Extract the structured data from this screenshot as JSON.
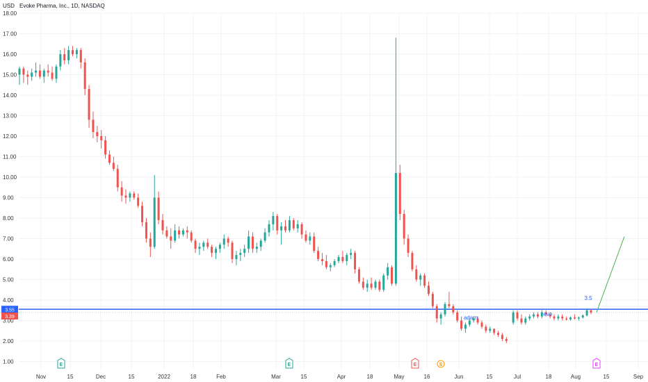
{
  "header": {
    "currency": "USD",
    "title": "Evoke Pharma, Inc., 1D, NASDAQ"
  },
  "colors": {
    "up": "#26a69a",
    "down": "#ef5350",
    "hline": "#2962ff",
    "trend": "#4caf50",
    "grid": "#f2f3f5",
    "earnings": "#26a69a",
    "earnings_past_red": "#ef5350",
    "split": "#ff9800",
    "future_earnings": "#e040fb"
  },
  "chart_data": {
    "type": "candlestick",
    "title": "Evoke Pharma, Inc., 1D, NASDAQ",
    "ylabel": "USD",
    "ylim": [
      0.5,
      18.5
    ],
    "y_ticks": [
      "1.00",
      "2.00",
      "3.00",
      "4.00",
      "5.00",
      "6.00",
      "7.00",
      "8.00",
      "9.00",
      "10.00",
      "11.00",
      "12.00",
      "13.00",
      "14.00",
      "15.00",
      "16.00",
      "17.00",
      "18.00"
    ],
    "x_ticks": [
      "Nov",
      "15",
      "Dec",
      "15",
      "2022",
      "18",
      "Feb",
      "Mar",
      "15",
      "Apr",
      "18",
      "May",
      "16",
      "Jun",
      "15",
      "Jul",
      "18",
      "Aug",
      "15",
      "Sep"
    ],
    "key_levels": [
      {
        "label": "3.55",
        "value": 3.55,
        "style": "horizontal line"
      },
      {
        "label": "3.39",
        "value": 3.39,
        "style": "last price"
      }
    ],
    "annotations": [
      "adam",
      "eve",
      "3.5"
    ],
    "events": [
      "E",
      "E",
      "E",
      "S",
      "E"
    ],
    "candles_ohlc": [
      [
        15.0,
        15.4,
        14.5,
        15.3
      ],
      [
        15.3,
        15.4,
        14.6,
        15.0
      ],
      [
        15.0,
        15.2,
        14.5,
        14.9
      ],
      [
        14.9,
        15.3,
        14.7,
        15.1
      ],
      [
        15.1,
        15.6,
        14.9,
        15.2
      ],
      [
        15.2,
        15.5,
        14.8,
        14.9
      ],
      [
        14.9,
        15.3,
        14.6,
        15.2
      ],
      [
        15.2,
        15.5,
        14.9,
        15.1
      ],
      [
        15.1,
        15.4,
        14.7,
        14.8
      ],
      [
        14.8,
        15.5,
        14.6,
        15.4
      ],
      [
        15.4,
        16.2,
        15.2,
        16.0
      ],
      [
        16.0,
        16.3,
        15.5,
        15.7
      ],
      [
        15.7,
        16.4,
        15.5,
        16.2
      ],
      [
        16.2,
        16.4,
        15.9,
        16.0
      ],
      [
        16.0,
        16.3,
        15.8,
        16.2
      ],
      [
        16.2,
        16.3,
        15.3,
        15.6
      ],
      [
        15.6,
        15.8,
        14.0,
        14.3
      ],
      [
        14.3,
        14.5,
        12.4,
        12.8
      ],
      [
        12.8,
        13.2,
        11.9,
        12.2
      ],
      [
        12.2,
        12.5,
        11.7,
        12.0
      ],
      [
        12.0,
        12.3,
        11.4,
        11.8
      ],
      [
        11.8,
        12.0,
        10.9,
        11.1
      ],
      [
        11.1,
        11.3,
        10.6,
        10.7
      ],
      [
        10.7,
        11.0,
        10.3,
        10.4
      ],
      [
        10.4,
        10.6,
        9.3,
        9.5
      ],
      [
        9.5,
        9.8,
        8.8,
        9.1
      ],
      [
        9.1,
        9.4,
        8.7,
        9.0
      ],
      [
        9.0,
        9.3,
        8.8,
        9.2
      ],
      [
        9.2,
        9.3,
        8.9,
        9.0
      ],
      [
        9.0,
        9.2,
        8.5,
        8.6
      ],
      [
        8.6,
        8.8,
        7.6,
        7.8
      ],
      [
        7.8,
        8.0,
        6.8,
        7.0
      ],
      [
        7.0,
        7.3,
        6.1,
        6.6
      ],
      [
        6.6,
        10.1,
        6.5,
        9.0
      ],
      [
        9.0,
        9.3,
        7.7,
        7.9
      ],
      [
        7.9,
        8.2,
        7.2,
        7.4
      ],
      [
        7.4,
        7.6,
        7.0,
        7.1
      ],
      [
        7.1,
        7.5,
        6.5,
        6.9
      ],
      [
        6.9,
        7.7,
        6.8,
        7.4
      ],
      [
        7.4,
        7.6,
        7.0,
        7.2
      ],
      [
        7.2,
        7.5,
        7.1,
        7.4
      ],
      [
        7.4,
        7.6,
        7.0,
        7.3
      ],
      [
        7.3,
        7.4,
        6.8,
        6.9
      ],
      [
        6.9,
        7.0,
        6.3,
        6.5
      ],
      [
        6.5,
        6.8,
        6.2,
        6.6
      ],
      [
        6.6,
        6.9,
        6.4,
        6.8
      ],
      [
        6.8,
        7.0,
        6.5,
        6.6
      ],
      [
        6.6,
        6.7,
        6.1,
        6.3
      ],
      [
        6.3,
        6.6,
        6.0,
        6.5
      ],
      [
        6.5,
        6.8,
        6.3,
        6.7
      ],
      [
        6.7,
        7.2,
        6.5,
        7.0
      ],
      [
        7.0,
        7.1,
        6.6,
        6.8
      ],
      [
        6.8,
        6.9,
        5.8,
        6.0
      ],
      [
        6.0,
        6.4,
        5.7,
        6.2
      ],
      [
        6.2,
        6.5,
        5.9,
        6.3
      ],
      [
        6.3,
        6.7,
        6.1,
        6.5
      ],
      [
        6.5,
        7.4,
        6.3,
        7.1
      ],
      [
        7.1,
        7.3,
        6.3,
        6.5
      ],
      [
        6.5,
        6.8,
        6.3,
        6.6
      ],
      [
        6.6,
        7.0,
        6.4,
        6.9
      ],
      [
        6.9,
        7.5,
        6.8,
        7.3
      ],
      [
        7.3,
        7.9,
        7.1,
        7.7
      ],
      [
        7.7,
        8.3,
        7.4,
        8.1
      ],
      [
        8.1,
        8.2,
        7.2,
        7.4
      ],
      [
        7.4,
        7.8,
        6.7,
        7.6
      ],
      [
        7.6,
        7.9,
        7.3,
        7.4
      ],
      [
        7.4,
        8.1,
        7.3,
        7.9
      ],
      [
        7.9,
        8.0,
        7.4,
        7.5
      ],
      [
        7.5,
        7.9,
        7.3,
        7.7
      ],
      [
        7.7,
        7.8,
        7.0,
        7.2
      ],
      [
        7.2,
        7.4,
        6.8,
        6.9
      ],
      [
        6.9,
        7.3,
        6.7,
        7.1
      ],
      [
        7.1,
        7.3,
        6.3,
        6.4
      ],
      [
        6.4,
        6.6,
        5.9,
        6.0
      ],
      [
        6.0,
        6.3,
        5.7,
        5.9
      ],
      [
        5.9,
        6.2,
        5.5,
        5.6
      ],
      [
        5.6,
        5.8,
        5.4,
        5.7
      ],
      [
        5.7,
        6.0,
        5.6,
        5.9
      ],
      [
        5.9,
        6.2,
        5.8,
        6.1
      ],
      [
        6.1,
        6.4,
        5.8,
        5.9
      ],
      [
        5.9,
        6.3,
        5.7,
        6.2
      ],
      [
        6.2,
        6.5,
        6.0,
        6.3
      ],
      [
        6.3,
        6.4,
        5.3,
        5.5
      ],
      [
        5.5,
        5.6,
        4.8,
        4.9
      ],
      [
        4.9,
        5.1,
        4.5,
        4.6
      ],
      [
        4.6,
        5.0,
        4.4,
        4.8
      ],
      [
        4.8,
        5.1,
        4.5,
        4.6
      ],
      [
        4.6,
        5.0,
        4.5,
        4.9
      ],
      [
        4.9,
        5.0,
        4.4,
        4.5
      ],
      [
        4.5,
        5.3,
        4.4,
        5.2
      ],
      [
        5.2,
        5.8,
        5.0,
        5.6
      ],
      [
        5.6,
        5.7,
        4.7,
        4.8
      ],
      [
        4.8,
        16.8,
        4.7,
        10.2
      ],
      [
        10.2,
        10.6,
        7.9,
        8.2
      ],
      [
        8.2,
        8.4,
        6.7,
        7.0
      ],
      [
        7.0,
        7.2,
        6.1,
        6.3
      ],
      [
        6.3,
        6.4,
        5.4,
        5.5
      ],
      [
        5.5,
        5.7,
        4.9,
        5.0
      ],
      [
        5.0,
        5.3,
        4.7,
        5.2
      ],
      [
        5.2,
        5.3,
        4.6,
        4.7
      ],
      [
        4.7,
        4.9,
        4.2,
        4.3
      ],
      [
        4.3,
        4.4,
        3.6,
        3.7
      ],
      [
        3.7,
        3.8,
        2.9,
        3.1
      ],
      [
        3.1,
        3.4,
        2.8,
        3.3
      ],
      [
        3.3,
        3.9,
        3.2,
        3.8
      ],
      [
        3.8,
        4.4,
        3.6,
        3.7
      ],
      [
        3.7,
        3.8,
        3.3,
        3.4
      ],
      [
        3.4,
        3.5,
        2.9,
        3.0
      ],
      [
        3.0,
        3.2,
        2.5,
        2.6
      ],
      [
        2.6,
        2.9,
        2.4,
        2.8
      ],
      [
        2.8,
        3.1,
        2.7,
        3.0
      ],
      [
        3.0,
        3.2,
        2.9,
        3.1
      ],
      [
        3.1,
        3.2,
        2.8,
        2.9
      ],
      [
        2.9,
        3.0,
        2.6,
        2.7
      ],
      [
        2.7,
        2.8,
        2.4,
        2.5
      ],
      [
        2.5,
        2.7,
        2.4,
        2.6
      ],
      [
        2.6,
        2.6,
        2.3,
        2.4
      ],
      [
        2.4,
        2.5,
        2.2,
        2.3
      ],
      [
        2.3,
        2.4,
        2.0,
        2.1
      ],
      [
        2.1,
        2.2,
        1.9,
        2.0
      ],
      [
        2.9,
        3.5,
        2.8,
        3.4
      ],
      [
        3.4,
        3.5,
        3.0,
        3.1
      ],
      [
        3.1,
        3.3,
        2.8,
        2.9
      ],
      [
        2.9,
        3.2,
        2.8,
        3.1
      ],
      [
        3.1,
        3.3,
        3.0,
        3.2
      ],
      [
        3.2,
        3.4,
        3.1,
        3.3
      ],
      [
        3.3,
        3.4,
        3.1,
        3.2
      ],
      [
        3.2,
        3.5,
        3.1,
        3.4
      ],
      [
        3.4,
        3.5,
        3.2,
        3.3
      ],
      [
        3.3,
        3.4,
        3.1,
        3.2
      ],
      [
        3.2,
        3.3,
        3.0,
        3.1
      ],
      [
        3.1,
        3.3,
        3.0,
        3.2
      ],
      [
        3.2,
        3.3,
        3.0,
        3.1
      ],
      [
        3.1,
        3.2,
        3.0,
        3.05
      ],
      [
        3.05,
        3.2,
        3.0,
        3.15
      ],
      [
        3.15,
        3.3,
        3.05,
        3.1
      ],
      [
        3.1,
        3.2,
        3.0,
        3.15
      ],
      [
        3.15,
        3.3,
        3.1,
        3.25
      ],
      [
        3.25,
        3.6,
        3.2,
        3.5
      ],
      [
        3.5,
        3.55,
        3.3,
        3.39
      ]
    ],
    "projection": {
      "from_value": 3.4,
      "to_value": 7.1
    }
  }
}
